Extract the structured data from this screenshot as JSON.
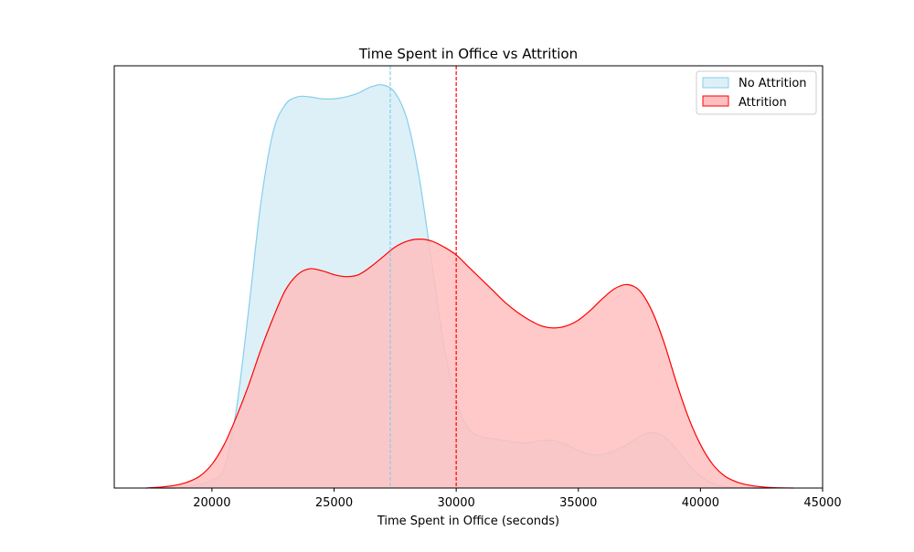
{
  "chart_data": {
    "type": "area",
    "title": "Time Spent in Office vs Attrition",
    "xlabel": "Time Spent in Office (seconds)",
    "ylabel": "",
    "xlim": [
      16000,
      45000
    ],
    "x_ticks": [
      20000,
      25000,
      30000,
      35000,
      40000,
      45000
    ],
    "y_axis_visible": false,
    "grid": false,
    "legend_position": "top-right",
    "series": [
      {
        "name": "No Attrition",
        "color": "#87ceeb",
        "fill": "#ddf0f8",
        "mean": 27300,
        "points": [
          [
            17500,
            0.0
          ],
          [
            18500,
            0.0
          ],
          [
            19000,
            0.005
          ],
          [
            19500,
            0.01
          ],
          [
            20000,
            0.02
          ],
          [
            20500,
            0.05
          ],
          [
            21000,
            0.2
          ],
          [
            21500,
            0.45
          ],
          [
            22000,
            0.72
          ],
          [
            22500,
            0.9
          ],
          [
            23000,
            0.97
          ],
          [
            23500,
            0.99
          ],
          [
            24000,
            0.99
          ],
          [
            24500,
            0.985
          ],
          [
            25000,
            0.985
          ],
          [
            25500,
            0.99
          ],
          [
            26000,
            1.0
          ],
          [
            26500,
            1.015
          ],
          [
            27000,
            1.02
          ],
          [
            27500,
            1.0
          ],
          [
            28000,
            0.93
          ],
          [
            28500,
            0.78
          ],
          [
            29000,
            0.57
          ],
          [
            29500,
            0.36
          ],
          [
            30000,
            0.22
          ],
          [
            30500,
            0.15
          ],
          [
            31000,
            0.13
          ],
          [
            31500,
            0.125
          ],
          [
            32000,
            0.12
          ],
          [
            32500,
            0.115
          ],
          [
            33000,
            0.115
          ],
          [
            33500,
            0.12
          ],
          [
            34000,
            0.12
          ],
          [
            34500,
            0.11
          ],
          [
            35000,
            0.095
          ],
          [
            35500,
            0.085
          ],
          [
            36000,
            0.085
          ],
          [
            36500,
            0.095
          ],
          [
            37000,
            0.11
          ],
          [
            37500,
            0.13
          ],
          [
            38000,
            0.14
          ],
          [
            38500,
            0.13
          ],
          [
            39000,
            0.1
          ],
          [
            39500,
            0.06
          ],
          [
            40000,
            0.03
          ],
          [
            40500,
            0.012
          ],
          [
            41000,
            0.004
          ],
          [
            42000,
            0.0
          ],
          [
            43000,
            0.0
          ]
        ]
      },
      {
        "name": "Attrition",
        "color": "#ff0000",
        "fill": "#ffbfbf",
        "mean": 30000,
        "points": [
          [
            17300,
            0.0
          ],
          [
            18000,
            0.003
          ],
          [
            18500,
            0.007
          ],
          [
            19000,
            0.015
          ],
          [
            19500,
            0.03
          ],
          [
            20000,
            0.06
          ],
          [
            20500,
            0.11
          ],
          [
            21000,
            0.18
          ],
          [
            21500,
            0.26
          ],
          [
            22000,
            0.35
          ],
          [
            22500,
            0.43
          ],
          [
            23000,
            0.5
          ],
          [
            23500,
            0.54
          ],
          [
            24000,
            0.555
          ],
          [
            24500,
            0.55
          ],
          [
            25000,
            0.54
          ],
          [
            25500,
            0.535
          ],
          [
            26000,
            0.54
          ],
          [
            26500,
            0.56
          ],
          [
            27000,
            0.585
          ],
          [
            27500,
            0.61
          ],
          [
            28000,
            0.625
          ],
          [
            28500,
            0.63
          ],
          [
            29000,
            0.625
          ],
          [
            29500,
            0.61
          ],
          [
            30000,
            0.59
          ],
          [
            30500,
            0.56
          ],
          [
            31000,
            0.53
          ],
          [
            31500,
            0.5
          ],
          [
            32000,
            0.47
          ],
          [
            32500,
            0.445
          ],
          [
            33000,
            0.425
          ],
          [
            33500,
            0.41
          ],
          [
            34000,
            0.405
          ],
          [
            34500,
            0.41
          ],
          [
            35000,
            0.425
          ],
          [
            35500,
            0.45
          ],
          [
            36000,
            0.48
          ],
          [
            36500,
            0.505
          ],
          [
            37000,
            0.515
          ],
          [
            37500,
            0.5
          ],
          [
            38000,
            0.45
          ],
          [
            38500,
            0.37
          ],
          [
            39000,
            0.27
          ],
          [
            39500,
            0.18
          ],
          [
            40000,
            0.11
          ],
          [
            40500,
            0.06
          ],
          [
            41000,
            0.03
          ],
          [
            41500,
            0.015
          ],
          [
            42000,
            0.007
          ],
          [
            42500,
            0.003
          ],
          [
            43000,
            0.001
          ],
          [
            43800,
            0.0
          ]
        ]
      }
    ]
  }
}
